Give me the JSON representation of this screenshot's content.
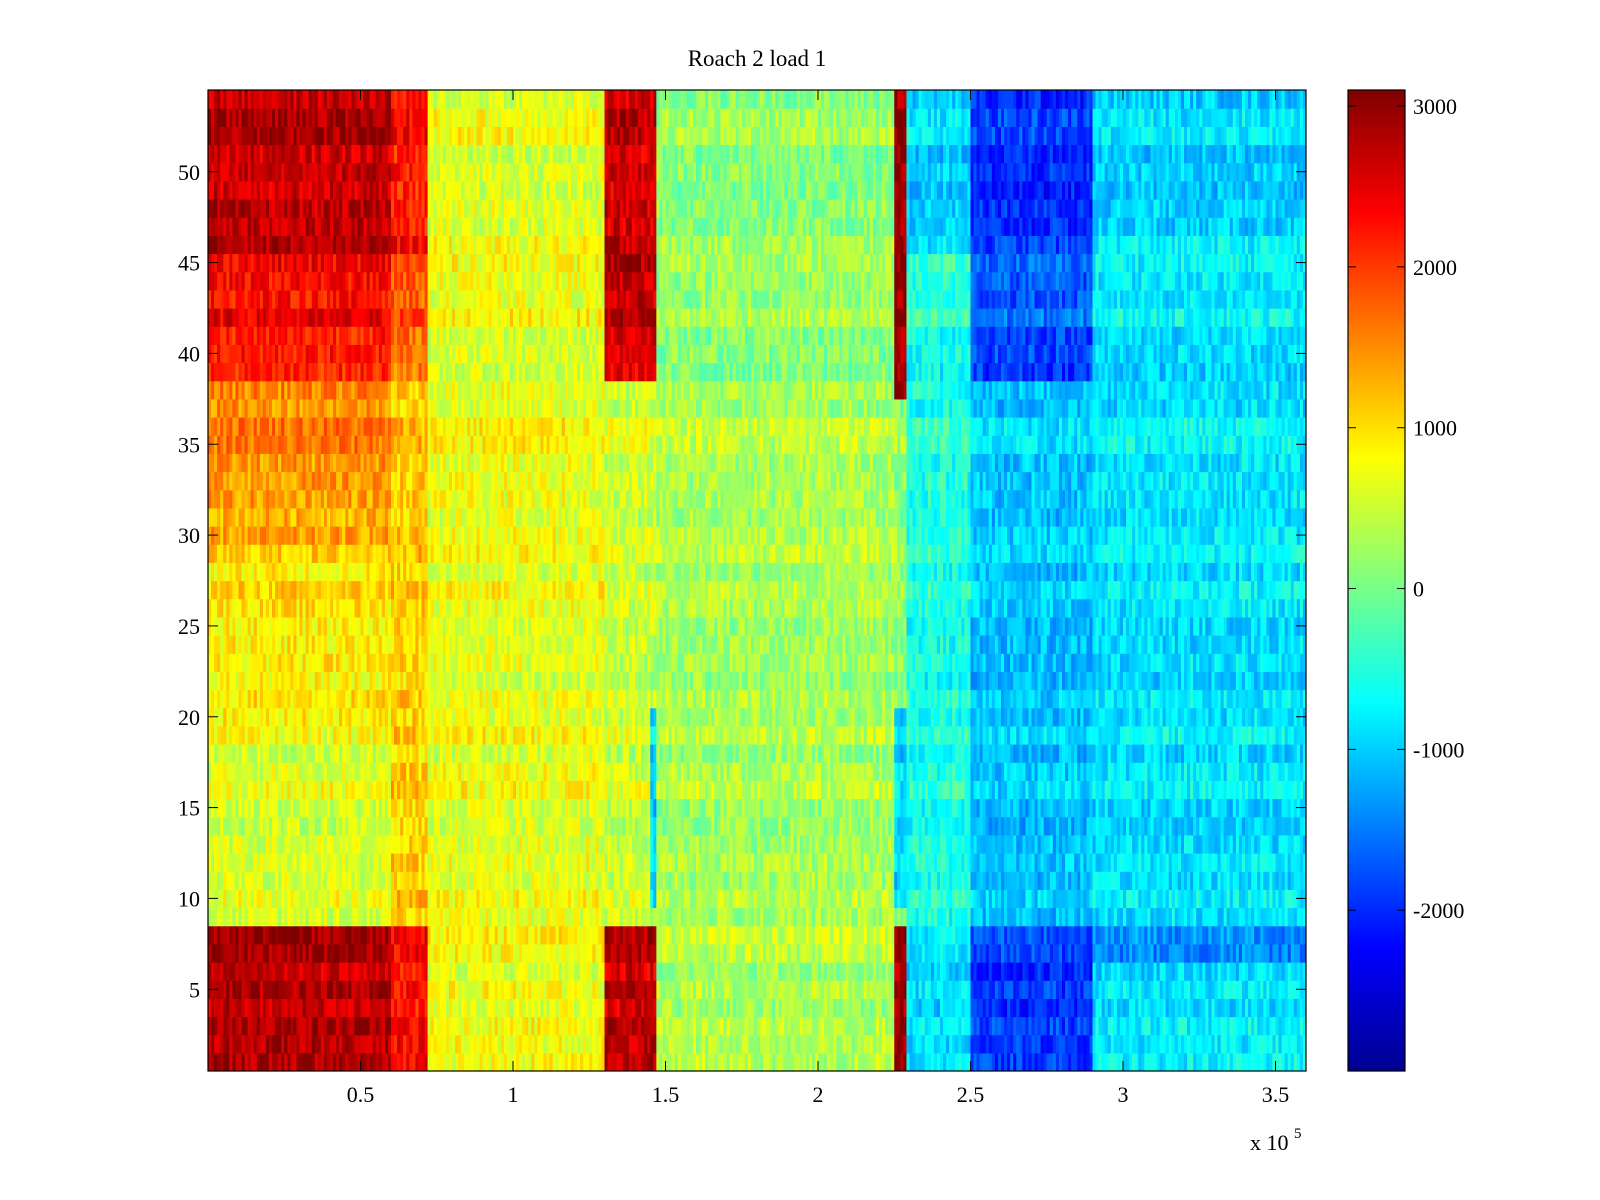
{
  "chart_data": {
    "type": "heatmap",
    "title": "Roach 2 load 1",
    "xlabel": "",
    "ylabel": "",
    "x_multiplier_label": "x 10",
    "x_multiplier_exponent": "5",
    "xlim": [
      0,
      3.6
    ],
    "ylim": [
      0.5,
      54.5
    ],
    "x_ticks": [
      0.5,
      1,
      1.5,
      2,
      2.5,
      3,
      3.5
    ],
    "x_tick_labels": [
      "0.5",
      "1",
      "1.5",
      "2",
      "2.5",
      "3",
      "3.5"
    ],
    "y_ticks": [
      5,
      10,
      15,
      20,
      25,
      30,
      35,
      40,
      45,
      50
    ],
    "y_tick_labels": [
      "5",
      "10",
      "15",
      "20",
      "25",
      "30",
      "35",
      "40",
      "45",
      "50"
    ],
    "rows": 54,
    "colormap": "jet",
    "colorbar": {
      "clim": [
        -3000,
        3100
      ],
      "ticks": [
        3000,
        2000,
        1000,
        0,
        -1000,
        -2000
      ],
      "tick_labels": [
        "3000",
        "2000",
        "1000",
        "0",
        "-1000",
        "-2000"
      ]
    },
    "column_bands": [
      {
        "x_start": 0.0,
        "x_end": 0.6,
        "values": "high (approx 3000 at rows 1-8 and 46-54, 1000-1500 mid rows)"
      },
      {
        "x_start": 0.6,
        "x_end": 0.72,
        "values": "approx 1500-2000"
      },
      {
        "x_start": 0.72,
        "x_end": 1.3,
        "values": "approx 600-900"
      },
      {
        "x_start": 1.3,
        "x_end": 1.47,
        "values": "approx 2500-3000 at rows 1-8 and 39-54"
      },
      {
        "x_start": 1.47,
        "x_end": 2.25,
        "values": "approx 0-400"
      },
      {
        "x_start": 2.25,
        "x_end": 2.29,
        "values": "approx 3000 at rows 1-8 and 38-54"
      },
      {
        "x_start": 2.29,
        "x_end": 2.5,
        "values": "approx -500"
      },
      {
        "x_start": 2.5,
        "x_end": 2.9,
        "values": "approx -1300 to -2000"
      },
      {
        "x_start": 2.9,
        "x_end": 3.6,
        "values": "approx -800 to -1100"
      }
    ],
    "colors": {
      "jet_low": "#00008f",
      "jet_blue": "#0000ff",
      "jet_cyan": "#00ffff",
      "jet_yellow": "#ffff00",
      "jet_red": "#ff0000",
      "jet_high": "#800000"
    }
  }
}
